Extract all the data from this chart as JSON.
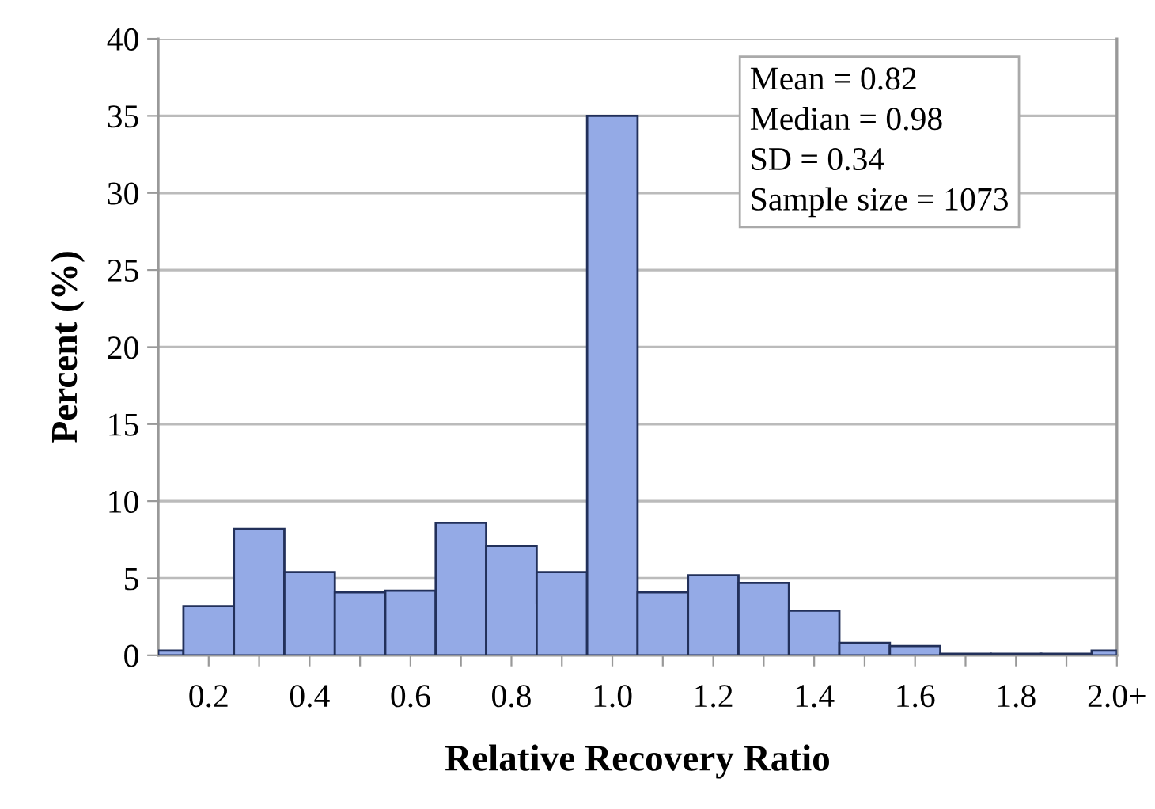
{
  "chart_data": {
    "type": "histogram",
    "xlabel": "Relative Recovery Ratio",
    "ylabel": "Percent (%)",
    "bins": [
      0.1,
      0.15,
      0.25,
      0.35,
      0.45,
      0.55,
      0.65,
      0.75,
      0.85,
      0.95,
      1.05,
      1.15,
      1.25,
      1.35,
      1.45,
      1.55,
      1.65,
      1.75,
      1.85,
      1.95,
      2.0
    ],
    "values": [
      0.3,
      3.2,
      8.2,
      5.4,
      4.1,
      4.2,
      8.6,
      7.1,
      5.4,
      35.0,
      4.1,
      5.2,
      4.7,
      2.9,
      0.8,
      0.6,
      0.1,
      0.1,
      0.1,
      0.3
    ],
    "color": "#94aae6",
    "xlim": [
      0.1,
      2.0
    ],
    "xticks": [
      0.2,
      {
        "value": 0.3,
        "label": null
      },
      0.4,
      {
        "value": 0.5,
        "label": null
      },
      0.6,
      {
        "value": 0.7,
        "label": null
      },
      0.8,
      {
        "value": 0.9,
        "label": null
      },
      {
        "value": 1.0,
        "label": "1.0"
      },
      {
        "value": 1.1,
        "label": null
      },
      1.2,
      {
        "value": 1.3,
        "label": null
      },
      1.4,
      {
        "value": 1.5,
        "label": null
      },
      1.6,
      {
        "value": 1.7,
        "label": null
      },
      1.8,
      {
        "value": 1.9,
        "label": null
      },
      {
        "value": 2.0,
        "label": "2.0+"
      }
    ],
    "ylim": [
      0,
      40
    ],
    "yticks": [
      0,
      5,
      10,
      15,
      20,
      25,
      30,
      35,
      40
    ],
    "grid": "y",
    "annotations": [
      "Mean = 0.82\nMedian = 0.98\nSD = 0.34\nSample size = 1073"
    ]
  }
}
